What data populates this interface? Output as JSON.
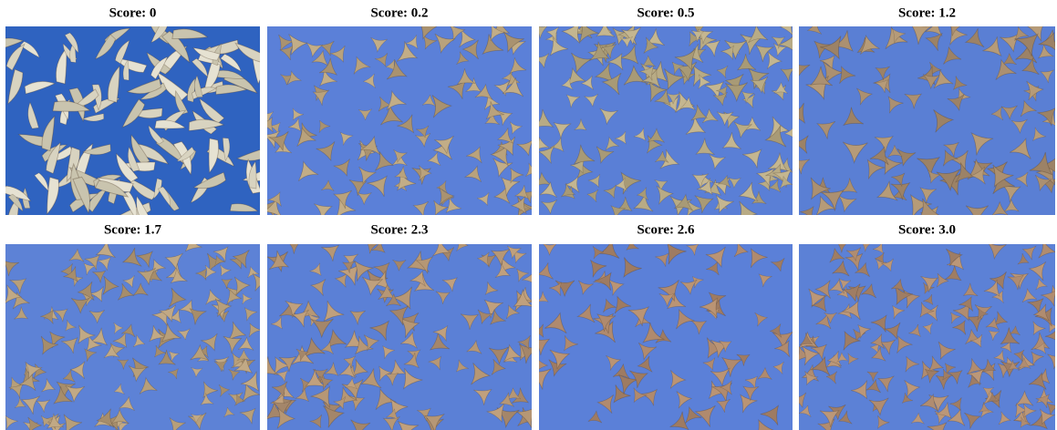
{
  "panels": [
    {
      "label": "Score: 0"
    },
    {
      "label": "Score: 0.2"
    },
    {
      "label": "Score: 0.5"
    },
    {
      "label": "Score: 1.2"
    },
    {
      "label": "Score: 1.7"
    },
    {
      "label": "Score: 2.3"
    },
    {
      "label": "Score: 2.6"
    },
    {
      "label": "Score: 3.0"
    }
  ]
}
